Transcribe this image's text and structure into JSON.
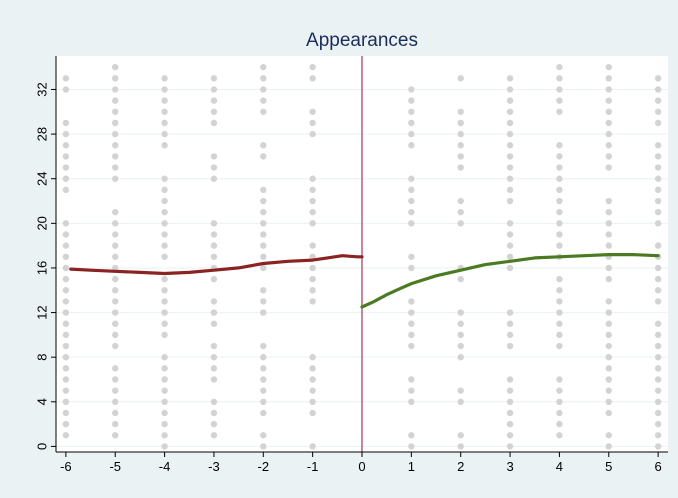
{
  "chart_data": {
    "type": "scatter",
    "title": "Appearances",
    "xlabel": "",
    "ylabel": "",
    "xlim": [
      -6.2,
      6.2
    ],
    "ylim": [
      -0.5,
      35
    ],
    "x_ticks": [
      -6,
      -5,
      -4,
      -3,
      -2,
      -1,
      0,
      1,
      2,
      3,
      4,
      5,
      6
    ],
    "y_ticks": [
      0,
      4,
      8,
      12,
      16,
      20,
      24,
      28,
      32
    ],
    "grid": true,
    "cutoff_x": 0,
    "scatter_points": {
      "color": "#d3d3d3",
      "columns": [
        {
          "x": -6,
          "ranges": [
            [
              1,
              20
            ],
            [
              23,
              29
            ],
            [
              32,
              33
            ]
          ]
        },
        {
          "x": -5,
          "ranges": [
            [
              1,
              7
            ],
            [
              9,
              21
            ],
            [
              24,
              34
            ]
          ]
        },
        {
          "x": -4,
          "ranges": [
            [
              0,
              8
            ],
            [
              10,
              15
            ],
            [
              17,
              24
            ],
            [
              27,
              33
            ]
          ]
        },
        {
          "x": -3,
          "ranges": [
            [
              1,
              4
            ],
            [
              6,
              9
            ],
            [
              11,
              13
            ],
            [
              15,
              20
            ],
            [
              24,
              26
            ],
            [
              29,
              33
            ]
          ]
        },
        {
          "x": -2,
          "ranges": [
            [
              0,
              1
            ],
            [
              3,
              9
            ],
            [
              12,
              14
            ],
            [
              16,
              23
            ],
            [
              26,
              27
            ],
            [
              30,
              34
            ]
          ]
        },
        {
          "x": -1,
          "ranges": [
            [
              0,
              0
            ],
            [
              3,
              8
            ],
            [
              13,
              18
            ],
            [
              20,
              24
            ],
            [
              28,
              30
            ],
            [
              33,
              34
            ]
          ]
        },
        {
          "x": 1,
          "ranges": [
            [
              0,
              1
            ],
            [
              4,
              6
            ],
            [
              9,
              13
            ],
            [
              16,
              17
            ],
            [
              20,
              24
            ],
            [
              27,
              32
            ]
          ]
        },
        {
          "x": 2,
          "ranges": [
            [
              0,
              1
            ],
            [
              4,
              5
            ],
            [
              8,
              12
            ],
            [
              15,
              16
            ],
            [
              20,
              22
            ],
            [
              25,
              30
            ],
            [
              33,
              33
            ]
          ]
        },
        {
          "x": 3,
          "ranges": [
            [
              0,
              6
            ],
            [
              9,
              12
            ],
            [
              16,
              20
            ],
            [
              22,
              33
            ]
          ]
        },
        {
          "x": 4,
          "ranges": [
            [
              1,
              6
            ],
            [
              9,
              15
            ],
            [
              17,
              27
            ],
            [
              30,
              34
            ]
          ]
        },
        {
          "x": 5,
          "ranges": [
            [
              0,
              1
            ],
            [
              3,
              13
            ],
            [
              15,
              22
            ],
            [
              25,
              34
            ]
          ]
        },
        {
          "x": 6,
          "ranges": [
            [
              0,
              11
            ],
            [
              13,
              18
            ],
            [
              20,
              27
            ],
            [
              29,
              33
            ]
          ]
        }
      ]
    },
    "series": [
      {
        "side": "left",
        "color": "#8b2323",
        "x": [
          -5.9,
          -5.5,
          -5,
          -4.5,
          -4,
          -3.5,
          -3,
          -2.5,
          -2,
          -1.5,
          -1,
          -0.7,
          -0.4,
          -0.1,
          0
        ],
        "y": [
          15.9,
          15.8,
          15.7,
          15.6,
          15.5,
          15.6,
          15.8,
          16.0,
          16.4,
          16.6,
          16.7,
          16.9,
          17.1,
          17.0,
          17.0
        ]
      },
      {
        "side": "right",
        "color": "#4a7a22",
        "x": [
          0,
          0.25,
          0.5,
          0.75,
          1,
          1.5,
          2,
          2.5,
          3,
          3.5,
          4,
          4.5,
          5,
          5.5,
          6
        ],
        "y": [
          12.5,
          13.0,
          13.6,
          14.1,
          14.6,
          15.3,
          15.8,
          16.3,
          16.6,
          16.9,
          17.0,
          17.1,
          17.2,
          17.2,
          17.1
        ]
      }
    ],
    "colors": {
      "background": "#eaf2f3",
      "plot_area": "#ffffff",
      "title": "#1a2d5c",
      "cutoff_line": "#a6355a",
      "grid": "#eaf2f3"
    }
  }
}
